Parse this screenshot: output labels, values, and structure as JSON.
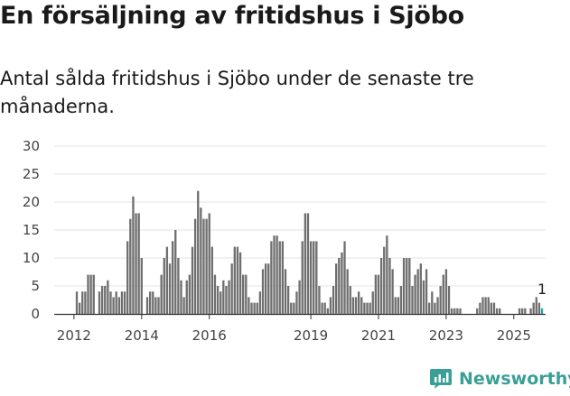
{
  "title": "En försäljning av fritidshus i Sjöbo",
  "subtitle": "Antal sålda fritidshus i Sjöbo under de senaste tre månaderna.",
  "brand": {
    "name": "Newsworthy",
    "color": "#3a9f96"
  },
  "colors": {
    "bars": "#6f6f6f",
    "highlight": "#1aa8a8",
    "grid": "#e3e3e3",
    "axis": "#333333"
  },
  "chart_data": {
    "type": "bar",
    "x_start": "2011-07",
    "x_ticks": [
      "2012",
      "2014",
      "2016",
      "2019",
      "2021",
      "2023",
      "2025"
    ],
    "y_ticks": [
      0,
      5,
      10,
      15,
      20,
      25,
      30
    ],
    "ylim": [
      0,
      30
    ],
    "grid": true,
    "values": [
      0,
      0,
      0,
      0,
      0,
      0,
      0,
      4,
      2,
      4,
      4,
      7,
      7,
      7,
      0,
      4,
      5,
      5,
      6,
      4,
      3,
      4,
      3,
      4,
      4,
      13,
      17,
      21,
      18,
      18,
      10,
      0,
      3,
      4,
      4,
      3,
      3,
      7,
      10,
      12,
      9,
      13,
      15,
      10,
      6,
      3,
      6,
      7,
      12,
      17,
      22,
      19,
      17,
      17,
      18,
      12,
      7,
      5,
      4,
      6,
      5,
      6,
      9,
      12,
      12,
      11,
      7,
      7,
      3,
      2,
      2,
      2,
      4,
      8,
      9,
      9,
      13,
      14,
      14,
      13,
      13,
      8,
      5,
      2,
      2,
      4,
      6,
      13,
      18,
      18,
      13,
      13,
      13,
      5,
      2,
      2,
      1,
      3,
      5,
      9,
      10,
      11,
      13,
      8,
      5,
      3,
      3,
      4,
      3,
      2,
      2,
      2,
      4,
      7,
      7,
      10,
      12,
      14,
      10,
      8,
      3,
      3,
      5,
      10,
      10,
      10,
      5,
      7,
      8,
      9,
      6,
      8,
      2,
      4,
      2,
      3,
      5,
      7,
      8,
      5,
      1,
      1,
      1,
      1,
      0,
      0,
      0,
      0,
      0,
      1,
      2,
      3,
      3,
      3,
      2,
      2,
      1,
      1,
      0,
      0,
      0,
      0,
      0,
      0,
      1,
      1,
      1,
      0,
      1,
      2,
      3,
      2,
      1
    ],
    "highlight_last": true,
    "annotation": {
      "text": "1"
    }
  }
}
